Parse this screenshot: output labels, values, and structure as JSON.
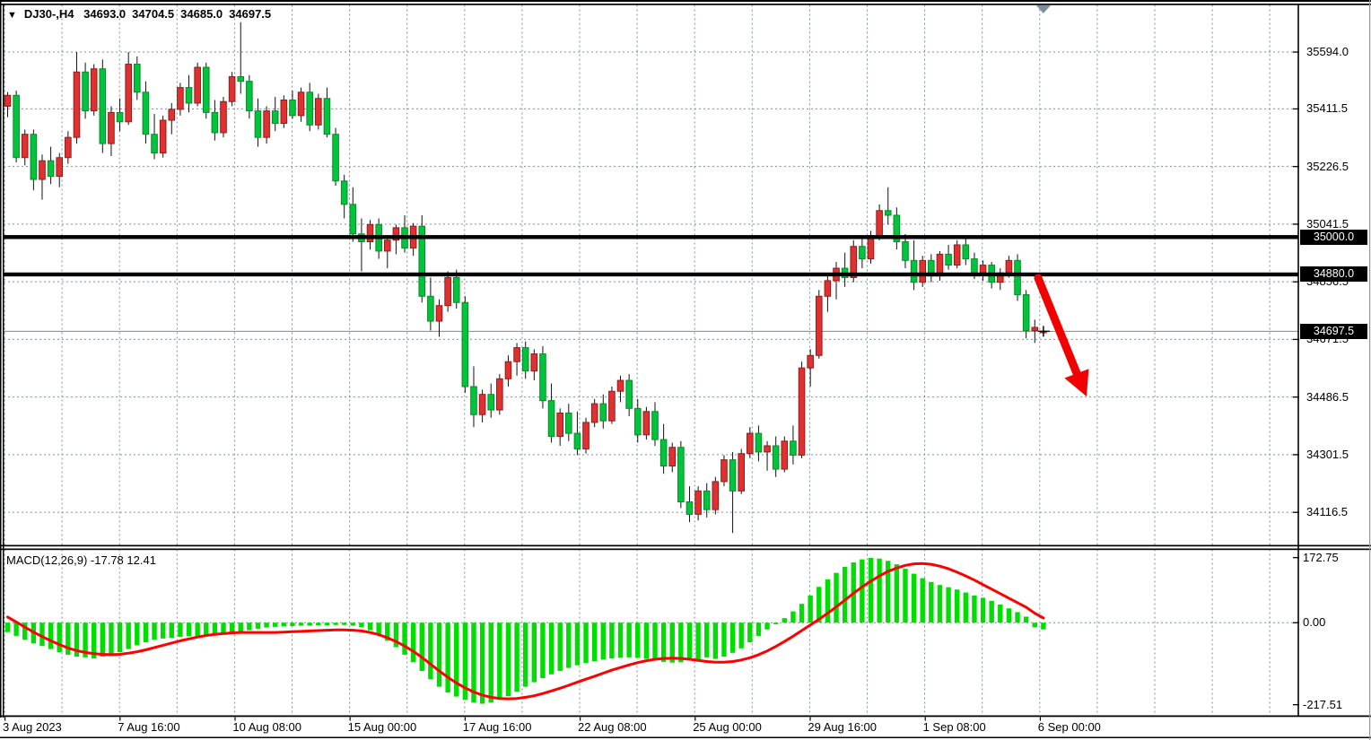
{
  "title": {
    "symbol": "DJ30-,H4",
    "open": "34693.0",
    "high": "34704.5",
    "low": "34685.0",
    "close": "34697.5"
  },
  "macd_label": "MACD(12,26,9) -17.78 12.41",
  "price_axis": {
    "ticks": [
      {
        "label": "35594.0",
        "value": 35594.0
      },
      {
        "label": "35411.5",
        "value": 35411.5
      },
      {
        "label": "35226.5",
        "value": 35226.5
      },
      {
        "label": "35041.5",
        "value": 35041.5
      },
      {
        "label": "34856.5",
        "value": 34856.5
      },
      {
        "label": "34671.5",
        "value": 34671.5
      },
      {
        "label": "34486.5",
        "value": 34486.5
      },
      {
        "label": "34301.5",
        "value": 34301.5
      },
      {
        "label": "34116.5",
        "value": 34116.5
      }
    ],
    "level_tags": [
      {
        "label": "35000.0",
        "value": 35000.0
      },
      {
        "label": "34880.0",
        "value": 34880.0
      }
    ],
    "current_tag": {
      "label": "34697.5",
      "value": 34697.5
    }
  },
  "macd_axis": {
    "ticks": [
      {
        "label": "172.75",
        "value": 172.75
      },
      {
        "label": "0.00",
        "value": 0
      },
      {
        "label": "-217.51",
        "value": -217.51
      }
    ]
  },
  "time_axis": {
    "labels": [
      "3 Aug 2023",
      "7 Aug 16:00",
      "10 Aug 08:00",
      "15 Aug 00:00",
      "17 Aug 16:00",
      "22 Aug 08:00",
      "25 Aug 00:00",
      "29 Aug 16:00",
      "1 Sep 08:00",
      "6 Sep 00:00"
    ]
  },
  "annotations": {
    "horizontal_levels": [
      35000.0,
      34880.0
    ],
    "current_price": 34697.5,
    "trend_arrow": {
      "direction": "down-right",
      "color": "#f20000"
    }
  },
  "colors": {
    "bull": "#e03030",
    "bull_border": "#8f1d1d",
    "bear": "#00c43c",
    "bear_border": "#0a8a2a",
    "wick": "#111111",
    "macd_hist": "#00dd00",
    "macd_signal": "#ff0000",
    "grid": "#7d8f9e",
    "level_line": "#000000",
    "price_line": "#848484",
    "axis": "#000000",
    "marker": "#7d8f9e"
  },
  "chart_data": {
    "type": "candlestick",
    "symbol": "DJ30-",
    "timeframe": "H4",
    "title": "DJ30-,H4 34693.0 34704.5 34685.0 34697.5",
    "x_range": [
      "3 Aug 2023 00:00",
      "6 Sep 2023 00:00"
    ],
    "price_axis_ticks": [
      35594.0,
      35411.5,
      35226.5,
      35041.5,
      34856.5,
      34671.5,
      34486.5,
      34301.5,
      34116.5
    ],
    "support_resistance_levels": [
      35000.0,
      34880.0
    ],
    "last_ohlc": [
      34693.0,
      34704.5,
      34685.0,
      34697.5
    ],
    "candles": [
      [
        35420,
        35465,
        35385,
        35455
      ],
      [
        35455,
        35470,
        35240,
        35255
      ],
      [
        35255,
        35345,
        35230,
        35330
      ],
      [
        35330,
        35345,
        35150,
        35185
      ],
      [
        35185,
        35265,
        35120,
        35245
      ],
      [
        35245,
        35290,
        35170,
        35195
      ],
      [
        35195,
        35270,
        35160,
        35255
      ],
      [
        35255,
        35340,
        35235,
        35320
      ],
      [
        35320,
        35594,
        35300,
        35530
      ],
      [
        35530,
        35560,
        35380,
        35405
      ],
      [
        35405,
        35555,
        35390,
        35540
      ],
      [
        35540,
        35570,
        35270,
        35300
      ],
      [
        35300,
        35420,
        35260,
        35400
      ],
      [
        35400,
        35445,
        35340,
        35370
      ],
      [
        35370,
        35594,
        35360,
        35555
      ],
      [
        35555,
        35580,
        35440,
        35465
      ],
      [
        35465,
        35500,
        35300,
        35330
      ],
      [
        35330,
        35395,
        35250,
        35270
      ],
      [
        35270,
        35390,
        35255,
        35375
      ],
      [
        35375,
        35430,
        35330,
        35410
      ],
      [
        35410,
        35495,
        35390,
        35480
      ],
      [
        35480,
        35520,
        35400,
        35430
      ],
      [
        35430,
        35560,
        35420,
        35545
      ],
      [
        35545,
        35560,
        35380,
        35400
      ],
      [
        35400,
        35440,
        35310,
        35335
      ],
      [
        35335,
        35450,
        35320,
        35435
      ],
      [
        35435,
        35530,
        35420,
        35515
      ],
      [
        35515,
        35690,
        35460,
        35500
      ],
      [
        35500,
        35520,
        35380,
        35405
      ],
      [
        35405,
        35445,
        35290,
        35320
      ],
      [
        35320,
        35420,
        35300,
        35405
      ],
      [
        35405,
        35450,
        35340,
        35365
      ],
      [
        35365,
        35455,
        35350,
        35440
      ],
      [
        35440,
        35470,
        35380,
        35390
      ],
      [
        35390,
        35480,
        35370,
        35465
      ],
      [
        35465,
        35495,
        35340,
        35360
      ],
      [
        35360,
        35460,
        35345,
        35445
      ],
      [
        35445,
        35480,
        35320,
        35330
      ],
      [
        35330,
        35350,
        35165,
        35180
      ],
      [
        35180,
        35200,
        35060,
        35105
      ],
      [
        35105,
        35160,
        34985,
        35010
      ],
      [
        35010,
        35060,
        34890,
        34985
      ],
      [
        34985,
        35055,
        34960,
        35040
      ],
      [
        35040,
        35060,
        34930,
        34955
      ],
      [
        34955,
        35000,
        34900,
        34990
      ],
      [
        34990,
        35040,
        34945,
        35030
      ],
      [
        35030,
        35070,
        34950,
        34965
      ],
      [
        34965,
        35045,
        34940,
        35035
      ],
      [
        35035,
        35070,
        34790,
        34810
      ],
      [
        34810,
        34870,
        34700,
        34730
      ],
      [
        34730,
        34800,
        34680,
        34780
      ],
      [
        34780,
        34890,
        34760,
        34870
      ],
      [
        34870,
        34895,
        34770,
        34790
      ],
      [
        34790,
        34810,
        34500,
        34520
      ],
      [
        34520,
        34585,
        34390,
        34430
      ],
      [
        34430,
        34510,
        34405,
        34495
      ],
      [
        34495,
        34530,
        34420,
        34445
      ],
      [
        34445,
        34560,
        34430,
        34545
      ],
      [
        34545,
        34620,
        34520,
        34600
      ],
      [
        34600,
        34660,
        34555,
        34645
      ],
      [
        34645,
        34665,
        34545,
        34570
      ],
      [
        34570,
        34640,
        34540,
        34625
      ],
      [
        34625,
        34650,
        34450,
        34475
      ],
      [
        34475,
        34530,
        34340,
        34360
      ],
      [
        34360,
        34450,
        34330,
        34435
      ],
      [
        34435,
        34465,
        34345,
        34370
      ],
      [
        34370,
        34440,
        34300,
        34320
      ],
      [
        34320,
        34420,
        34305,
        34405
      ],
      [
        34405,
        34480,
        34390,
        34465
      ],
      [
        34465,
        34495,
        34385,
        34410
      ],
      [
        34410,
        34520,
        34400,
        34505
      ],
      [
        34505,
        34555,
        34470,
        34540
      ],
      [
        34540,
        34560,
        34425,
        34450
      ],
      [
        34450,
        34480,
        34340,
        34365
      ],
      [
        34365,
        34455,
        34350,
        34440
      ],
      [
        34440,
        34470,
        34330,
        34350
      ],
      [
        34350,
        34400,
        34240,
        34265
      ],
      [
        34265,
        34340,
        34245,
        34325
      ],
      [
        34325,
        34345,
        34130,
        34150
      ],
      [
        34150,
        34200,
        34085,
        34110
      ],
      [
        34110,
        34200,
        34090,
        34185
      ],
      [
        34185,
        34210,
        34100,
        34125
      ],
      [
        34125,
        34230,
        34110,
        34215
      ],
      [
        34215,
        34300,
        34200,
        34285
      ],
      [
        34285,
        34310,
        34050,
        34185
      ],
      [
        34185,
        34320,
        34175,
        34305
      ],
      [
        34305,
        34390,
        34290,
        34370
      ],
      [
        34370,
        34395,
        34280,
        34310
      ],
      [
        34310,
        34345,
        34250,
        34330
      ],
      [
        34330,
        34360,
        34230,
        34255
      ],
      [
        34255,
        34360,
        34245,
        34345
      ],
      [
        34345,
        34395,
        34270,
        34300
      ],
      [
        34300,
        34600,
        34290,
        34580
      ],
      [
        34580,
        34640,
        34520,
        34620
      ],
      [
        34620,
        34830,
        34610,
        34810
      ],
      [
        34810,
        34880,
        34760,
        34860
      ],
      [
        34860,
        34920,
        34800,
        34900
      ],
      [
        34900,
        34950,
        34840,
        34870
      ],
      [
        34870,
        34990,
        34855,
        34970
      ],
      [
        34970,
        35000,
        34900,
        34930
      ],
      [
        34930,
        35020,
        34915,
        35005
      ],
      [
        35005,
        35105,
        34990,
        35085
      ],
      [
        35085,
        35160,
        35040,
        35070
      ],
      [
        35070,
        35095,
        34960,
        34985
      ],
      [
        34985,
        35010,
        34900,
        34925
      ],
      [
        34925,
        34990,
        34830,
        34855
      ],
      [
        34855,
        34940,
        34840,
        34925
      ],
      [
        34925,
        34945,
        34855,
        34875
      ],
      [
        34875,
        34955,
        34860,
        34945
      ],
      [
        34945,
        34975,
        34895,
        34910
      ],
      [
        34910,
        34990,
        34900,
        34975
      ],
      [
        34975,
        35000,
        34910,
        34930
      ],
      [
        34930,
        34950,
        34865,
        34885
      ],
      [
        34885,
        34925,
        34860,
        34910
      ],
      [
        34910,
        34920,
        34835,
        34855
      ],
      [
        34855,
        34900,
        34830,
        34885
      ],
      [
        34885,
        34940,
        34870,
        34925
      ],
      [
        34925,
        34945,
        34795,
        34815
      ],
      [
        34815,
        34830,
        34675,
        34700
      ],
      [
        34700,
        34735,
        34660,
        34710
      ],
      [
        34693,
        34704.5,
        34685,
        34697.5
      ]
    ],
    "indicator": {
      "name": "MACD",
      "params": [
        12,
        26,
        9
      ],
      "axis_ticks": [
        172.75,
        0.0,
        -217.51
      ],
      "last_values": {
        "macd": -17.78,
        "signal": 12.41
      },
      "histogram": [
        -25,
        -35,
        -45,
        -55,
        -62,
        -70,
        -78,
        -85,
        -90,
        -92,
        -95,
        -90,
        -85,
        -78,
        -70,
        -60,
        -52,
        -45,
        -42,
        -40,
        -38,
        -36,
        -35,
        -34,
        -33,
        -32,
        -30,
        -25,
        -20,
        -16,
        -13,
        -11,
        -10,
        -9,
        -8,
        -8,
        -7,
        -7,
        -6,
        -6,
        -8,
        -12,
        -20,
        -32,
        -48,
        -65,
        -85,
        -105,
        -128,
        -150,
        -170,
        -185,
        -196,
        -205,
        -212,
        -215,
        -212,
        -205,
        -195,
        -183,
        -170,
        -158,
        -147,
        -137,
        -128,
        -120,
        -113,
        -107,
        -102,
        -98,
        -95,
        -93,
        -92,
        -93,
        -96,
        -100,
        -104,
        -106,
        -105,
        -100,
        -98,
        -92,
        -96,
        -90,
        -80,
        -68,
        -52,
        -35,
        -18,
        -4,
        12,
        30,
        50,
        72,
        95,
        115,
        132,
        148,
        160,
        168,
        172,
        170,
        164,
        155,
        143,
        130,
        118,
        108,
        100,
        94,
        88,
        80,
        72,
        66,
        58,
        48,
        38,
        28,
        16,
        -12,
        -17.78
      ],
      "signal": [
        15,
        2,
        -12,
        -25,
        -37,
        -48,
        -58,
        -67,
        -74,
        -79,
        -82,
        -84,
        -85,
        -84,
        -81,
        -77,
        -72,
        -66,
        -60,
        -54,
        -48,
        -43,
        -38,
        -34,
        -31,
        -29,
        -27,
        -26,
        -26,
        -26,
        -26,
        -26,
        -25,
        -24,
        -23,
        -22,
        -21,
        -20,
        -19,
        -19,
        -20,
        -22,
        -26,
        -32,
        -40,
        -50,
        -62,
        -76,
        -92,
        -110,
        -128,
        -145,
        -160,
        -173,
        -184,
        -192,
        -198,
        -201,
        -202,
        -201,
        -198,
        -194,
        -188,
        -181,
        -174,
        -166,
        -158,
        -150,
        -142,
        -134,
        -126,
        -119,
        -112,
        -106,
        -101,
        -97,
        -95,
        -94,
        -95,
        -97,
        -100,
        -103,
        -105,
        -105,
        -103,
        -99,
        -93,
        -85,
        -75,
        -63,
        -50,
        -36,
        -21,
        -6,
        9,
        25,
        42,
        60,
        78,
        95,
        110,
        124,
        136,
        145,
        152,
        156,
        157,
        155,
        150,
        143,
        134,
        124,
        113,
        101,
        89,
        77,
        65,
        53,
        41,
        25,
        12.41
      ]
    }
  }
}
